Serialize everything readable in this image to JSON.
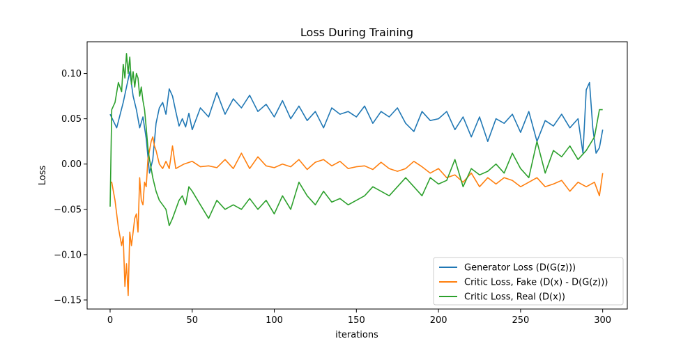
{
  "chart_data": {
    "type": "line",
    "title": "Loss During Training",
    "xlabel": "iterations",
    "ylabel": "Loss",
    "xlim": [
      -14,
      315
    ],
    "ylim": [
      -0.16,
      0.135
    ],
    "x_ticks": [
      0,
      50,
      100,
      150,
      200,
      250,
      300
    ],
    "y_ticks": [
      -0.15,
      -0.1,
      -0.05,
      0.0,
      0.05,
      0.1
    ],
    "y_tick_labels": [
      "−0.15",
      "−0.10",
      "−0.05",
      "0.00",
      "0.05",
      "0.10"
    ],
    "grid": false,
    "legend_position": "lower-right",
    "series": [
      {
        "name": "Generator Loss (D(G(z)))",
        "color": "#1f77b4",
        "x": [
          0,
          4,
          8,
          10,
          12,
          14,
          16,
          18,
          20,
          22,
          24,
          26,
          28,
          30,
          32,
          34,
          36,
          38,
          40,
          42,
          44,
          46,
          48,
          50,
          55,
          60,
          65,
          70,
          75,
          80,
          85,
          90,
          95,
          100,
          105,
          110,
          115,
          120,
          125,
          130,
          135,
          140,
          145,
          150,
          155,
          160,
          165,
          170,
          175,
          180,
          185,
          190,
          195,
          200,
          205,
          210,
          215,
          220,
          225,
          230,
          235,
          240,
          245,
          250,
          255,
          260,
          265,
          270,
          275,
          280,
          285,
          288,
          290,
          292,
          294,
          296,
          298,
          300
        ],
        "y": [
          0.055,
          0.04,
          0.068,
          0.085,
          0.102,
          0.075,
          0.06,
          0.04,
          0.052,
          0.028,
          -0.01,
          0.005,
          0.045,
          0.062,
          0.068,
          0.055,
          0.083,
          0.075,
          0.058,
          0.042,
          0.05,
          0.041,
          0.056,
          0.038,
          0.062,
          0.052,
          0.079,
          0.055,
          0.072,
          0.062,
          0.076,
          0.058,
          0.066,
          0.052,
          0.07,
          0.05,
          0.064,
          0.048,
          0.058,
          0.04,
          0.062,
          0.055,
          0.058,
          0.052,
          0.064,
          0.045,
          0.058,
          0.052,
          0.062,
          0.045,
          0.036,
          0.058,
          0.048,
          0.05,
          0.058,
          0.038,
          0.052,
          0.03,
          0.052,
          0.025,
          0.05,
          0.045,
          0.055,
          0.035,
          0.058,
          0.025,
          0.048,
          0.042,
          0.055,
          0.04,
          0.05,
          0.012,
          0.082,
          0.09,
          0.04,
          0.012,
          0.018,
          0.038
        ]
      },
      {
        "name": "Critic Loss, Fake (D(x) - D(G(z)))",
        "color": "#ff7f0e",
        "x": [
          0,
          1,
          3,
          5,
          7,
          8,
          9,
          10,
          11,
          12,
          13,
          14,
          15,
          16,
          17,
          18,
          19,
          20,
          21,
          22,
          23,
          24,
          25,
          26,
          27,
          28,
          30,
          32,
          34,
          36,
          38,
          40,
          45,
          50,
          55,
          60,
          65,
          70,
          75,
          80,
          85,
          90,
          95,
          100,
          105,
          110,
          115,
          120,
          125,
          130,
          135,
          140,
          145,
          150,
          155,
          160,
          165,
          170,
          175,
          180,
          185,
          190,
          195,
          200,
          205,
          210,
          215,
          220,
          225,
          230,
          235,
          240,
          245,
          250,
          255,
          260,
          265,
          270,
          275,
          280,
          285,
          290,
          295,
          298,
          300
        ],
        "y": [
          -0.02,
          -0.02,
          -0.04,
          -0.07,
          -0.09,
          -0.08,
          -0.135,
          -0.11,
          -0.145,
          -0.075,
          -0.09,
          -0.075,
          -0.06,
          -0.055,
          -0.075,
          -0.015,
          -0.04,
          -0.045,
          -0.02,
          -0.025,
          0.005,
          0.015,
          0.025,
          0.03,
          0.02,
          0.015,
          0.0,
          -0.005,
          0.003,
          -0.005,
          0.02,
          -0.005,
          0.0,
          0.003,
          -0.003,
          -0.002,
          -0.004,
          0.005,
          -0.005,
          0.012,
          -0.005,
          0.008,
          -0.002,
          -0.004,
          0.0,
          -0.003,
          0.005,
          -0.006,
          0.002,
          0.005,
          -0.002,
          0.003,
          -0.005,
          -0.003,
          -0.002,
          -0.006,
          0.002,
          -0.005,
          -0.008,
          -0.005,
          0.003,
          -0.003,
          -0.01,
          -0.005,
          -0.015,
          -0.012,
          -0.02,
          -0.01,
          -0.025,
          -0.015,
          -0.022,
          -0.015,
          -0.018,
          -0.025,
          -0.02,
          -0.015,
          -0.025,
          -0.022,
          -0.018,
          -0.03,
          -0.02,
          -0.025,
          -0.02,
          -0.035,
          -0.01
        ]
      },
      {
        "name": "Critic Loss, Real (D(x))",
        "color": "#2ca02c",
        "x": [
          0,
          1,
          3,
          5,
          7,
          8,
          9,
          10,
          11,
          12,
          13,
          14,
          15,
          16,
          17,
          18,
          19,
          20,
          21,
          22,
          23,
          24,
          25,
          26,
          28,
          30,
          32,
          34,
          36,
          38,
          40,
          42,
          44,
          46,
          48,
          50,
          55,
          60,
          65,
          70,
          75,
          80,
          85,
          90,
          95,
          100,
          105,
          110,
          115,
          120,
          125,
          130,
          135,
          140,
          145,
          150,
          155,
          160,
          165,
          170,
          175,
          180,
          185,
          190,
          195,
          200,
          205,
          210,
          215,
          220,
          225,
          230,
          235,
          240,
          245,
          250,
          255,
          260,
          265,
          270,
          275,
          280,
          285,
          290,
          295,
          298,
          300
        ],
        "y": [
          -0.047,
          0.06,
          0.068,
          0.09,
          0.08,
          0.11,
          0.095,
          0.122,
          0.1,
          0.118,
          0.088,
          0.102,
          0.085,
          0.1,
          0.095,
          0.075,
          0.085,
          0.07,
          0.06,
          0.04,
          0.018,
          0.005,
          -0.005,
          -0.015,
          -0.03,
          -0.04,
          -0.045,
          -0.05,
          -0.068,
          -0.06,
          -0.05,
          -0.04,
          -0.035,
          -0.045,
          -0.025,
          -0.03,
          -0.045,
          -0.06,
          -0.04,
          -0.05,
          -0.045,
          -0.05,
          -0.038,
          -0.05,
          -0.04,
          -0.055,
          -0.035,
          -0.05,
          -0.02,
          -0.035,
          -0.045,
          -0.03,
          -0.042,
          -0.038,
          -0.045,
          -0.04,
          -0.035,
          -0.025,
          -0.03,
          -0.035,
          -0.025,
          -0.015,
          -0.025,
          -0.035,
          -0.015,
          -0.022,
          -0.018,
          0.005,
          -0.025,
          -0.005,
          -0.012,
          -0.008,
          0.0,
          -0.01,
          0.012,
          -0.005,
          -0.015,
          0.025,
          -0.01,
          0.015,
          0.008,
          0.02,
          0.005,
          0.015,
          0.03,
          0.06,
          0.06
        ]
      }
    ]
  }
}
